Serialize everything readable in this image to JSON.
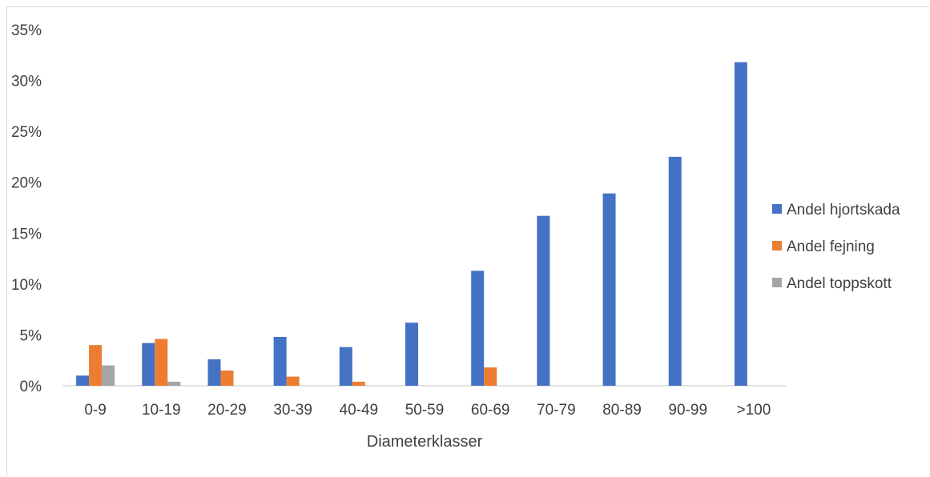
{
  "chart_data": {
    "type": "bar",
    "title": "",
    "xlabel": "Diameterklasser",
    "ylabel": "",
    "ylim": [
      0,
      35
    ],
    "yticks": [
      "0%",
      "5%",
      "10%",
      "15%",
      "20%",
      "25%",
      "30%",
      "35%"
    ],
    "ytick_values": [
      0,
      5,
      10,
      15,
      20,
      25,
      30,
      35
    ],
    "categories": [
      "0-9",
      "10-19",
      "20-29",
      "30-39",
      "40-49",
      "50-59",
      "60-69",
      "70-79",
      "80-89",
      "90-99",
      ">100"
    ],
    "series": [
      {
        "name": "Andel hjortskada",
        "color": "#4472C4",
        "values": [
          1.0,
          4.2,
          2.6,
          4.8,
          3.8,
          6.2,
          11.3,
          16.7,
          18.9,
          22.5,
          31.8
        ]
      },
      {
        "name": "Andel fejning",
        "color": "#ED7D31",
        "values": [
          4.0,
          4.6,
          1.5,
          0.9,
          0.4,
          0,
          1.8,
          0,
          0,
          0,
          0
        ]
      },
      {
        "name": "Andel toppskott",
        "color": "#A5A5A5",
        "values": [
          2.0,
          0.4,
          0,
          0,
          0,
          0,
          0,
          0,
          0,
          0,
          0
        ]
      }
    ],
    "grid": false,
    "legend_position": "right"
  }
}
